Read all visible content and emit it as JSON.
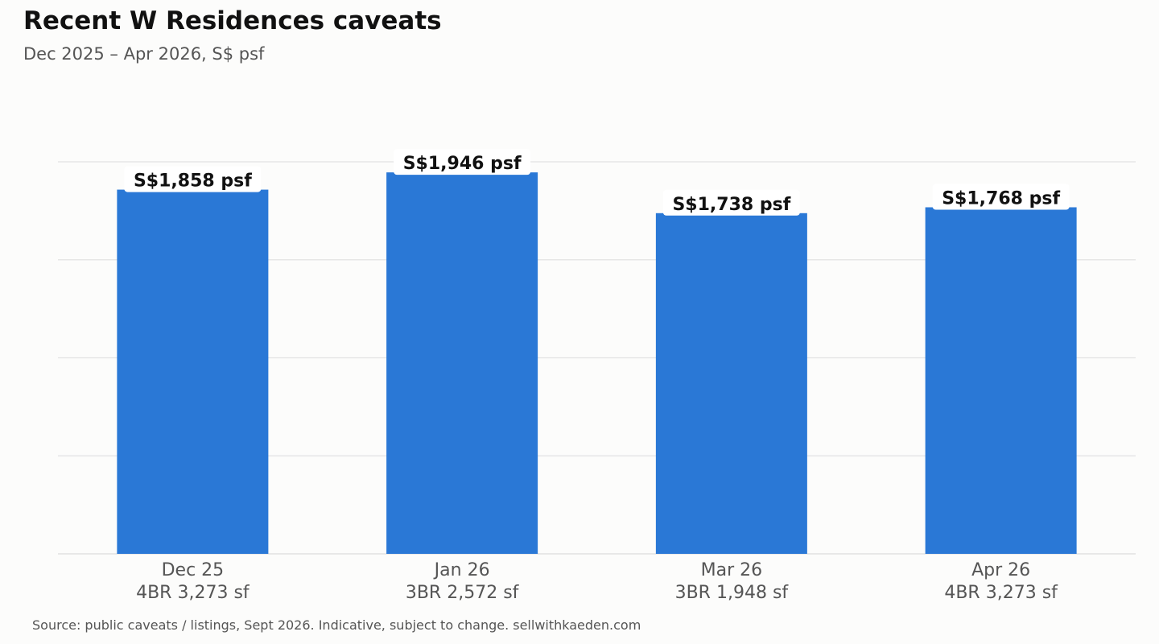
{
  "header": {
    "title": "Recent W Residences caveats",
    "subtitle": "Dec 2025 – Apr 2026, S$ psf"
  },
  "footer": {
    "source": "Source: public caveats / listings, Sept 2026. Indicative, subject to change. sellwithkaeden.com"
  },
  "colors": {
    "bar": "#2a78d6",
    "grid": "#e2e2e2",
    "background": "#fcfcfb"
  },
  "chart_data": {
    "type": "bar",
    "title": "Recent W Residences caveats",
    "subtitle": "Dec 2025 – Apr 2026, S$ psf",
    "categories": [
      "Dec 25",
      "Jan 26",
      "Mar 26",
      "Apr 26"
    ],
    "sublabels": [
      "4BR 3,273 sf",
      "3BR 2,572 sf",
      "3BR 1,948 sf",
      "4BR 3,273 sf"
    ],
    "values": [
      1858,
      1946,
      1738,
      1768
    ],
    "value_labels": [
      "S$1,858 psf",
      "S$1,946 psf",
      "S$1,738 psf",
      "S$1,768 psf"
    ],
    "xlabel": "",
    "ylabel": "",
    "ylim": [
      0,
      2000
    ],
    "grid": "horizontal",
    "legend": "none"
  }
}
